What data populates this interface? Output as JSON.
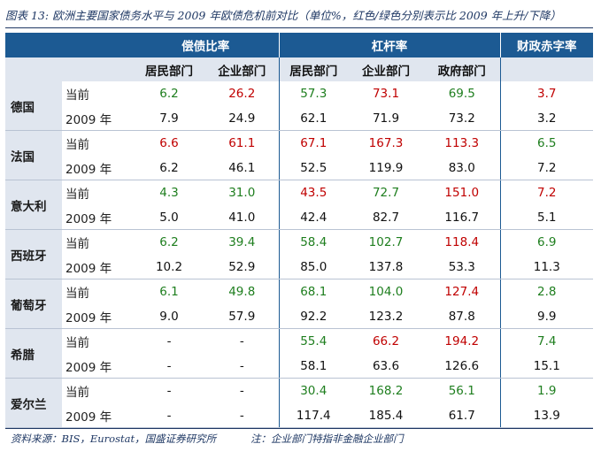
{
  "title": "图表 13: 欧洲主要国家债务水平与 2009 年欧债危机前对比（单位%，红色/绿色分别表示比 2009 年上升/下降）",
  "groups": {
    "debt_service": "偿债比率",
    "leverage": "杠杆率",
    "deficit": "财政赤字率"
  },
  "subheaders": {
    "household": "居民部门",
    "corporate": "企业部门",
    "household2": "居民部门",
    "corporate2": "企业部门",
    "government": "政府部门"
  },
  "row_labels": {
    "current": "当前",
    "y2009": "2009 年"
  },
  "colors": {
    "header_bg": "#1c5a93",
    "subheader_bg": "#e0e6ef",
    "up": "#c00000",
    "down": "#1e7e1e"
  },
  "countries": [
    {
      "name": "德国",
      "current": [
        {
          "v": "6.2",
          "c": "green"
        },
        {
          "v": "26.2",
          "c": "red"
        },
        {
          "v": "57.3",
          "c": "green"
        },
        {
          "v": "73.1",
          "c": "red"
        },
        {
          "v": "69.5",
          "c": "green"
        },
        {
          "v": "3.7",
          "c": "red"
        }
      ],
      "y2009": [
        "7.9",
        "24.9",
        "62.1",
        "71.9",
        "73.2",
        "3.2"
      ]
    },
    {
      "name": "法国",
      "current": [
        {
          "v": "6.6",
          "c": "red"
        },
        {
          "v": "61.1",
          "c": "red"
        },
        {
          "v": "67.1",
          "c": "red"
        },
        {
          "v": "167.3",
          "c": "red"
        },
        {
          "v": "113.3",
          "c": "red"
        },
        {
          "v": "6.5",
          "c": "green"
        }
      ],
      "y2009": [
        "6.2",
        "46.1",
        "52.5",
        "119.9",
        "83.0",
        "7.2"
      ]
    },
    {
      "name": "意大利",
      "current": [
        {
          "v": "4.3",
          "c": "green"
        },
        {
          "v": "31.0",
          "c": "green"
        },
        {
          "v": "43.5",
          "c": "red"
        },
        {
          "v": "72.7",
          "c": "green"
        },
        {
          "v": "151.0",
          "c": "red"
        },
        {
          "v": "7.2",
          "c": "red"
        }
      ],
      "y2009": [
        "5.0",
        "41.0",
        "42.4",
        "82.7",
        "116.7",
        "5.1"
      ]
    },
    {
      "name": "西班牙",
      "current": [
        {
          "v": "6.2",
          "c": "green"
        },
        {
          "v": "39.4",
          "c": "green"
        },
        {
          "v": "58.4",
          "c": "green"
        },
        {
          "v": "102.7",
          "c": "green"
        },
        {
          "v": "118.4",
          "c": "red"
        },
        {
          "v": "6.9",
          "c": "green"
        }
      ],
      "y2009": [
        "10.2",
        "52.9",
        "85.0",
        "137.8",
        "53.3",
        "11.3"
      ]
    },
    {
      "name": "葡萄牙",
      "current": [
        {
          "v": "6.1",
          "c": "green"
        },
        {
          "v": "49.8",
          "c": "green"
        },
        {
          "v": "68.1",
          "c": "green"
        },
        {
          "v": "104.0",
          "c": "green"
        },
        {
          "v": "127.4",
          "c": "red"
        },
        {
          "v": "2.8",
          "c": "green"
        }
      ],
      "y2009": [
        "9.0",
        "57.9",
        "92.2",
        "123.2",
        "87.8",
        "9.9"
      ]
    },
    {
      "name": "希腊",
      "current": [
        {
          "v": "-",
          "c": "black"
        },
        {
          "v": "-",
          "c": "black"
        },
        {
          "v": "55.4",
          "c": "green"
        },
        {
          "v": "66.2",
          "c": "red"
        },
        {
          "v": "194.2",
          "c": "red"
        },
        {
          "v": "7.4",
          "c": "green"
        }
      ],
      "y2009": [
        "-",
        "-",
        "58.1",
        "63.6",
        "126.6",
        "15.1"
      ]
    },
    {
      "name": "爱尔兰",
      "current": [
        {
          "v": "-",
          "c": "black"
        },
        {
          "v": "-",
          "c": "black"
        },
        {
          "v": "30.4",
          "c": "green"
        },
        {
          "v": "168.2",
          "c": "green"
        },
        {
          "v": "56.1",
          "c": "green"
        },
        {
          "v": "1.9",
          "c": "green"
        }
      ],
      "y2009": [
        "-",
        "-",
        "117.4",
        "185.4",
        "61.7",
        "13.9"
      ]
    }
  ],
  "source": "资料来源：BIS，Eurostat，国盛证券研究所",
  "note": "注：企业部门特指非金融企业部门"
}
